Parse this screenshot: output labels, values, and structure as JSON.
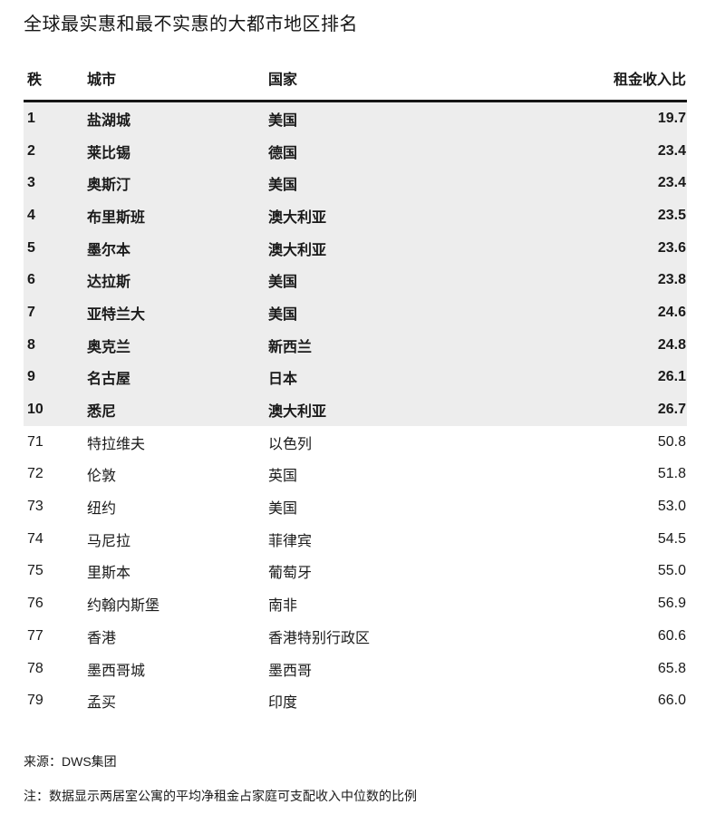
{
  "title": "全球最实惠和最不实惠的大都市地区排名",
  "header": {
    "rank": "秩",
    "city": "城市",
    "country": "国家",
    "ratio": "租金收入比"
  },
  "footer": {
    "source": "来源：DWS集团",
    "note": "注：数据显示两居室公寓的平均净租金占家庭可支配收入中位数的比例"
  },
  "colors": {
    "highlight_row_bg": "#ededed",
    "text": "#1a1a1a",
    "header_rule": "#161616"
  },
  "chart_data": {
    "type": "table",
    "title": "全球最实惠和最不实惠的大都市地区排名",
    "columns": [
      "秩",
      "城市",
      "国家",
      "租金收入比"
    ],
    "layout": "ranks 1-10 highlighted with gray background and bold text; ranks 71-79 plain; ratio column right-aligned",
    "rows": [
      {
        "rank": "1",
        "city": "盐湖城",
        "country": "美国",
        "ratio": "19.7",
        "highlight": true
      },
      {
        "rank": "2",
        "city": "莱比锡",
        "country": "德国",
        "ratio": "23.4",
        "highlight": true
      },
      {
        "rank": "3",
        "city": "奥斯汀",
        "country": "美国",
        "ratio": "23.4",
        "highlight": true
      },
      {
        "rank": "4",
        "city": "布里斯班",
        "country": "澳大利亚",
        "ratio": "23.5",
        "highlight": true
      },
      {
        "rank": "5",
        "city": "墨尔本",
        "country": "澳大利亚",
        "ratio": "23.6",
        "highlight": true
      },
      {
        "rank": "6",
        "city": "达拉斯",
        "country": "美国",
        "ratio": "23.8",
        "highlight": true
      },
      {
        "rank": "7",
        "city": "亚特兰大",
        "country": "美国",
        "ratio": "24.6",
        "highlight": true
      },
      {
        "rank": "8",
        "city": "奥克兰",
        "country": "新西兰",
        "ratio": "24.8",
        "highlight": true
      },
      {
        "rank": "9",
        "city": "名古屋",
        "country": "日本",
        "ratio": "26.1",
        "highlight": true
      },
      {
        "rank": "10",
        "city": "悉尼",
        "country": "澳大利亚",
        "ratio": "26.7",
        "highlight": true
      },
      {
        "rank": "71",
        "city": "特拉维夫",
        "country": "以色列",
        "ratio": "50.8",
        "highlight": false
      },
      {
        "rank": "72",
        "city": "伦敦",
        "country": "英国",
        "ratio": "51.8",
        "highlight": false
      },
      {
        "rank": "73",
        "city": "纽约",
        "country": "美国",
        "ratio": "53.0",
        "highlight": false
      },
      {
        "rank": "74",
        "city": "马尼拉",
        "country": "菲律宾",
        "ratio": "54.5",
        "highlight": false
      },
      {
        "rank": "75",
        "city": "里斯本",
        "country": "葡萄牙",
        "ratio": "55.0",
        "highlight": false
      },
      {
        "rank": "76",
        "city": "约翰内斯堡",
        "country": "南非",
        "ratio": "56.9",
        "highlight": false
      },
      {
        "rank": "77",
        "city": "香港",
        "country": "香港特别行政区",
        "ratio": "60.6",
        "highlight": false
      },
      {
        "rank": "78",
        "city": "墨西哥城",
        "country": "墨西哥",
        "ratio": "65.8",
        "highlight": false
      },
      {
        "rank": "79",
        "city": "孟买",
        "country": "印度",
        "ratio": "66.0",
        "highlight": false
      }
    ]
  }
}
